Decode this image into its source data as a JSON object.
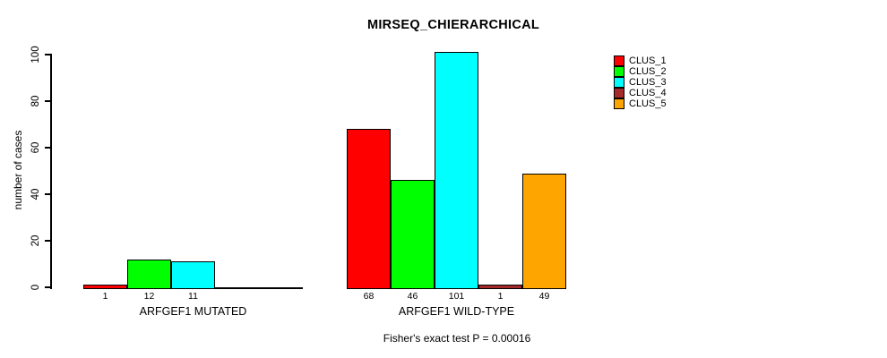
{
  "title": "MIRSEQ_CHIERARCHICAL",
  "y_axis": {
    "label": "number of cases",
    "ticks": [
      "0",
      "20",
      "40",
      "60",
      "80",
      "100"
    ]
  },
  "legend": {
    "items": [
      {
        "label": "CLUS_1",
        "color": "#FF0000"
      },
      {
        "label": "CLUS_2",
        "color": "#00FF00"
      },
      {
        "label": "CLUS_3",
        "color": "#00FFFF"
      },
      {
        "label": "CLUS_4",
        "color": "#A52A2A"
      },
      {
        "label": "CLUS_5",
        "color": "#FFA500"
      }
    ]
  },
  "chart_data": {
    "type": "bar",
    "title": "MIRSEQ_CHIERARCHICAL",
    "xlabel": "",
    "ylabel": "number of cases",
    "ylim": [
      0,
      100
    ],
    "yticks": [
      0,
      20,
      40,
      60,
      80,
      100
    ],
    "grid": false,
    "legend_position": "top-right",
    "categories": [
      "CLUS_1",
      "CLUS_2",
      "CLUS_3",
      "CLUS_4",
      "CLUS_5"
    ],
    "colors": [
      "#FF0000",
      "#00FF00",
      "#00FFFF",
      "#A52A2A",
      "#FFA500"
    ],
    "groups": [
      {
        "label": "ARFGEF1 MUTATED",
        "values": [
          1,
          12,
          11,
          0,
          0
        ],
        "bar_labels": [
          "1",
          "12",
          "11",
          "",
          ""
        ]
      },
      {
        "label": "ARFGEF1 WILD-TYPE",
        "values": [
          68,
          46,
          101,
          1,
          49
        ],
        "bar_labels": [
          "68",
          "46",
          "101",
          "1",
          "49"
        ]
      }
    ],
    "annotation": "Fisher's exact test P = 0.00016"
  }
}
